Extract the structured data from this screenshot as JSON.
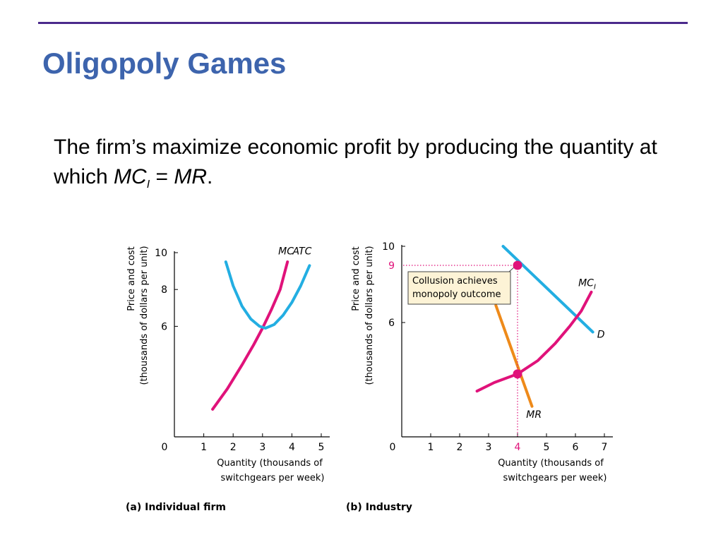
{
  "slide": {
    "title": "Oligopoly Games",
    "text_before": "The firm’s maximize economic profit by producing the quantity at which ",
    "text_mc": "MC",
    "text_mc_sub": "I",
    "text_eq": " = ",
    "text_mr": "MR",
    "text_after": "."
  },
  "colors": {
    "rule": "#4b2a8c",
    "title": "#3d64ad",
    "mc": "#e0127a",
    "atc": "#23aee2",
    "demand": "#23aee2",
    "mr": "#ee8a1a",
    "highlight": "#e0127a",
    "callout_fill": "#fdf3d6"
  },
  "chart_data": [
    {
      "type": "line",
      "panel_label": "(a) Individual firm",
      "ylabel_line1": "Price and cost",
      "ylabel_line2": "(thousands of dollars per unit)",
      "xlabel_line1": "Quantity (thousands of",
      "xlabel_line2": "switchgears per week)",
      "origin_label": "0",
      "xlim": [
        0,
        5
      ],
      "ylim": [
        0,
        10
      ],
      "xticks": [
        1,
        2,
        3,
        4,
        5
      ],
      "yticks": [
        6,
        8,
        10
      ],
      "series": [
        {
          "name": "MC",
          "label": "MC",
          "color": "#e0127a",
          "points": [
            [
              1.3,
              1.5
            ],
            [
              1.8,
              2.6
            ],
            [
              2.3,
              3.9
            ],
            [
              2.7,
              5.0
            ],
            [
              3.0,
              5.9
            ],
            [
              3.3,
              6.9
            ],
            [
              3.6,
              8.0
            ],
            [
              3.85,
              9.5
            ]
          ]
        },
        {
          "name": "ATC",
          "label": "ATC",
          "color": "#23aee2",
          "points": [
            [
              1.75,
              9.5
            ],
            [
              2.0,
              8.2
            ],
            [
              2.3,
              7.1
            ],
            [
              2.6,
              6.4
            ],
            [
              2.9,
              6.0
            ],
            [
              3.1,
              5.9
            ],
            [
              3.4,
              6.1
            ],
            [
              3.7,
              6.6
            ],
            [
              4.0,
              7.3
            ],
            [
              4.3,
              8.2
            ],
            [
              4.6,
              9.3
            ]
          ]
        }
      ],
      "annotations": [
        {
          "text": "MC",
          "x": 3.8,
          "y": 9.9
        },
        {
          "text": "ATC",
          "x": 4.35,
          "y": 9.9
        }
      ]
    },
    {
      "type": "line",
      "panel_label": "(b) Industry",
      "ylabel_line1": "Price and cost",
      "ylabel_line2": "(thousands of dollars per unit)",
      "xlabel_line1": "Quantity (thousands of",
      "xlabel_line2": "switchgears per week)",
      "origin_label": "0",
      "xlim": [
        0,
        7
      ],
      "ylim": [
        0,
        10
      ],
      "xticks": [
        1,
        2,
        3,
        4,
        5,
        6,
        7
      ],
      "yticks": [
        6,
        10
      ],
      "highlight_x_label": "4",
      "highlight_y_label": "9",
      "series": [
        {
          "name": "D",
          "label": "D",
          "color": "#23aee2",
          "points": [
            [
              3.5,
              10.0
            ],
            [
              6.6,
              5.5
            ]
          ]
        },
        {
          "name": "MR",
          "label": "MR",
          "color": "#ee8a1a",
          "points": [
            [
              3.25,
              6.9
            ],
            [
              4.5,
              1.6
            ]
          ]
        },
        {
          "name": "MC_I",
          "label": "MC",
          "label_sub": "I",
          "color": "#e0127a",
          "points": [
            [
              2.6,
              2.4
            ],
            [
              3.2,
              2.85
            ],
            [
              4.0,
              3.3
            ],
            [
              4.7,
              4.0
            ],
            [
              5.3,
              4.9
            ],
            [
              5.8,
              5.8
            ],
            [
              6.2,
              6.6
            ],
            [
              6.55,
              7.6
            ]
          ]
        }
      ],
      "points": [
        {
          "x": 4,
          "y": 9,
          "label": "monopoly outcome"
        },
        {
          "x": 4,
          "y": 3.3,
          "label": "MC = MR"
        }
      ],
      "callout_line1": "Collusion achieves",
      "callout_line2": "monopoly outcome"
    }
  ]
}
